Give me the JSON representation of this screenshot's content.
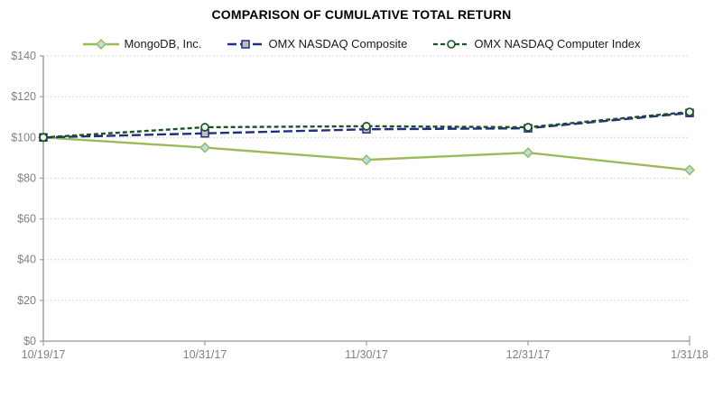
{
  "chart_data": {
    "type": "line",
    "title": "COMPARISON OF CUMULATIVE TOTAL RETURN",
    "x": [
      "10/19/17",
      "10/31/17",
      "11/30/17",
      "12/31/17",
      "1/31/18"
    ],
    "series": [
      {
        "name": "MongoDB, Inc.",
        "values": [
          100,
          95,
          89,
          92.5,
          84
        ],
        "color": "#9BBB59",
        "marker": "diamond",
        "marker_fill": "#B7DDE8",
        "dash": ""
      },
      {
        "name": "OMX NASDAQ Composite",
        "values": [
          100,
          102,
          104,
          104.5,
          112
        ],
        "color": "#232D82",
        "marker": "square",
        "marker_fill": "#BFBFBF",
        "dash": "10 4"
      },
      {
        "name": "OMX NASDAQ Computer Index",
        "values": [
          100,
          105,
          105.5,
          105,
          112.5
        ],
        "color": "#1E5128",
        "marker": "circle",
        "marker_fill": "#EDF6ED",
        "dash": "5 3"
      }
    ],
    "ylim": [
      0,
      140
    ],
    "ytick_step": 20,
    "ytick_labels": [
      "$0",
      "$20",
      "$40",
      "$60",
      "$80",
      "$100",
      "$120",
      "$140"
    ],
    "grid": "horizontal-dashed",
    "legend_position": "top",
    "colors": {
      "axis": "#A6A6A6",
      "gridline": "#D9D9D9",
      "tick_label": "#808080",
      "title": "#000000"
    }
  }
}
